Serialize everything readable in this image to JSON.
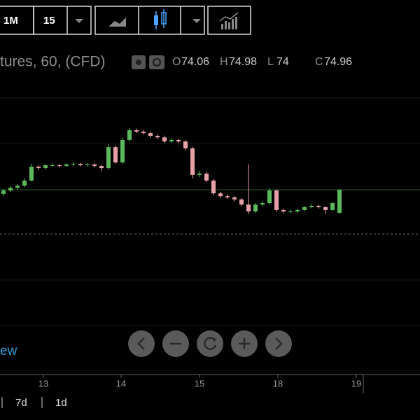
{
  "toolbar": {
    "range": "1M",
    "interval": "15"
  },
  "chart_data": {
    "type": "candlestick",
    "title": "tures, 60, (CFD)",
    "ohlc_labels": [
      "O",
      "H",
      "L",
      "C"
    ],
    "open": [
      74.8,
      74.93,
      75.04,
      75.12,
      75.32,
      75.86,
      75.81,
      75.92,
      75.92,
      75.89,
      75.95,
      75.97,
      75.92,
      75.95,
      75.89,
      75.81,
      76.63,
      76.03,
      76.91,
      77.29,
      77.23,
      77.18,
      77.07,
      77.01,
      76.85,
      76.91,
      76.85,
      76.58,
      75.54,
      75.59,
      75.32,
      74.82,
      74.71,
      74.66,
      74.58,
      74.38,
      74.11,
      74.38,
      74.44,
      74.93,
      74.17,
      74.11,
      74.11,
      74.17,
      74.28,
      74.33,
      74.28,
      74.17,
      74.06
    ],
    "high": [
      74.99,
      75.1,
      75.18,
      75.4,
      75.98,
      75.92,
      75.98,
      75.99,
      75.97,
      76.0,
      76.03,
      76.02,
      76.0,
      75.99,
      75.93,
      76.74,
      76.7,
      77.0,
      77.38,
      77.36,
      77.3,
      77.24,
      77.14,
      77.08,
      76.98,
      76.96,
      76.9,
      76.64,
      75.7,
      75.66,
      75.38,
      74.88,
      74.78,
      74.72,
      74.63,
      75.95,
      74.44,
      74.52,
      75.02,
      74.98,
      74.22,
      74.18,
      74.22,
      74.33,
      74.4,
      74.38,
      74.32,
      74.5,
      74.98
    ],
    "low": [
      74.72,
      74.88,
      74.98,
      75.06,
      75.28,
      75.74,
      75.76,
      75.86,
      75.83,
      75.85,
      75.9,
      75.87,
      75.88,
      75.83,
      75.7,
      75.75,
      75.98,
      75.98,
      76.85,
      77.18,
      77.12,
      77.0,
      76.95,
      76.78,
      76.8,
      76.78,
      76.5,
      75.4,
      75.46,
      75.25,
      74.74,
      74.64,
      74.6,
      74.5,
      74.3,
      74.0,
      74.05,
      74.32,
      74.38,
      74.1,
      74.04,
      74.05,
      74.06,
      74.12,
      74.24,
      74.22,
      74.02,
      74.12,
      74.0
    ],
    "close": [
      74.93,
      75.04,
      75.12,
      75.32,
      75.86,
      75.81,
      75.92,
      75.92,
      75.89,
      75.95,
      75.97,
      75.92,
      75.95,
      75.89,
      75.81,
      76.63,
      76.03,
      76.91,
      77.29,
      77.23,
      77.18,
      77.07,
      77.01,
      76.85,
      76.91,
      76.85,
      76.58,
      75.54,
      75.59,
      75.32,
      74.82,
      74.71,
      74.66,
      74.58,
      74.38,
      74.11,
      74.38,
      74.44,
      74.93,
      74.17,
      74.11,
      74.11,
      74.17,
      74.28,
      74.33,
      74.28,
      74.17,
      74.44,
      74.96
    ],
    "up_color": "#5cb85c",
    "down_color": "#e8a0a8",
    "reference_line": 73.23,
    "xlim": [
      -0.5,
      59.5
    ],
    "xticks": [
      {
        "value": 5.7,
        "label": "13"
      },
      {
        "value": 16.8,
        "label": "14"
      },
      {
        "value": 28.0,
        "label": "15"
      },
      {
        "value": 39.2,
        "label": "18"
      },
      {
        "value": 50.4,
        "label": "19"
      }
    ],
    "ylim": [
      67.73,
      79.51
    ]
  },
  "footer": {
    "link": "ew",
    "ranges": [
      "7d",
      "1d"
    ]
  }
}
